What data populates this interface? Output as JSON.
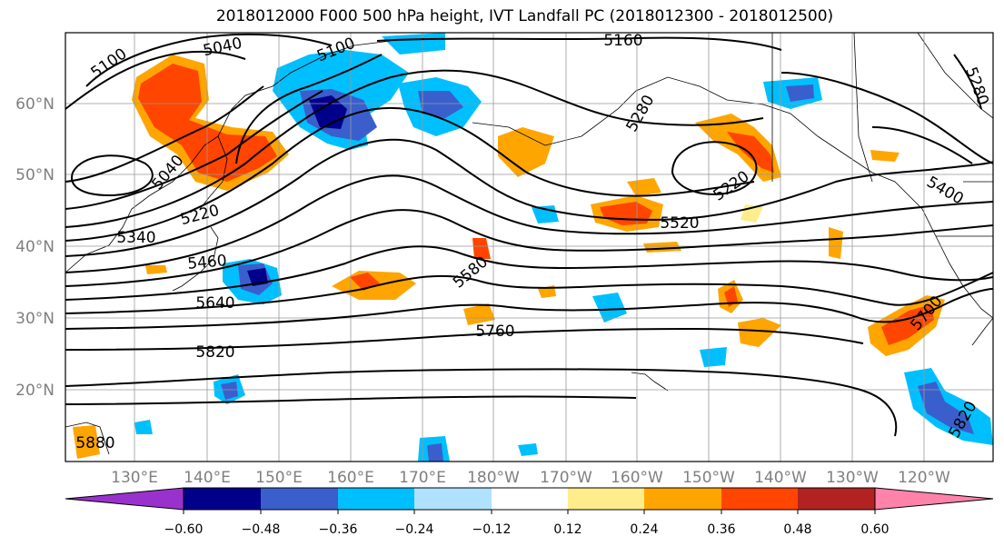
{
  "title": "2018012000 F000 500 hPa height, IVT Landfall PC (2018012300 - 2018012500)",
  "map": {
    "lat_labels": [
      "60°N",
      "50°N",
      "40°N",
      "30°N",
      "20°N"
    ],
    "lon_labels": [
      "130°E",
      "140°E",
      "150°E",
      "160°E",
      "170°E",
      "180°W",
      "170°W",
      "160°W",
      "150°W",
      "140°W",
      "130°W",
      "120°W"
    ],
    "contour_labels": [
      "5100",
      "5040",
      "5100",
      "5160",
      "5280",
      "5280",
      "5040",
      "5220",
      "5340",
      "5460",
      "5640",
      "5820",
      "5880",
      "5580",
      "5760",
      "5220",
      "5520",
      "5400",
      "5700",
      "5820"
    ],
    "label_color": "#7f7f7f"
  },
  "colorbar": {
    "colors": [
      "#9932cc",
      "#00008b",
      "#3a5fcd",
      "#00bfff",
      "#b0e2ff",
      "#ffffff",
      "#ffec8b",
      "#ffa500",
      "#ff4500",
      "#b22222",
      "#ff82ab"
    ],
    "tick_labels": [
      "−0.60",
      "−0.48",
      "−0.36",
      "−0.24",
      "−0.12",
      "0.12",
      "0.24",
      "0.36",
      "0.48",
      "0.60"
    ]
  }
}
